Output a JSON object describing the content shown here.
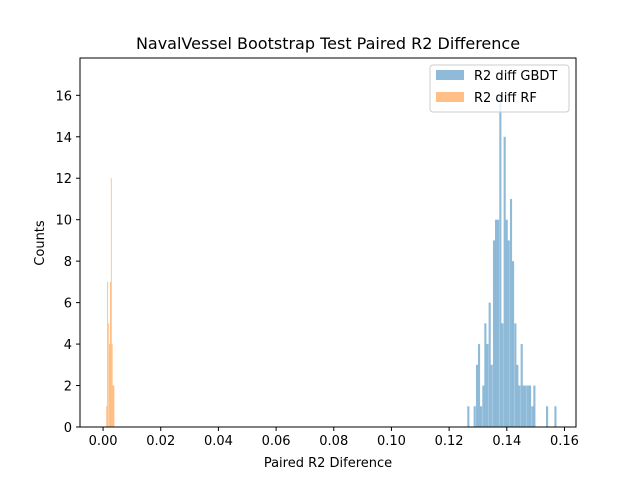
{
  "chart_data": {
    "type": "histogram",
    "title": "NavalVessel Bootstrap Test Paired R2 Difference",
    "xlabel": "Paired R2 Diference",
    "ylabel": "Counts",
    "xlim": [
      -0.008,
      0.164
    ],
    "ylim": [
      0,
      17.8
    ],
    "xticks": [
      0.0,
      0.02,
      0.04,
      0.06,
      0.08,
      0.1,
      0.12,
      0.14,
      0.16
    ],
    "xtick_labels": [
      "0.00",
      "0.02",
      "0.04",
      "0.06",
      "0.08",
      "0.10",
      "0.12",
      "0.14",
      "0.16"
    ],
    "yticks": [
      0,
      2,
      4,
      6,
      8,
      10,
      12,
      14,
      16
    ],
    "ytick_labels": [
      "0",
      "2",
      "4",
      "6",
      "8",
      "10",
      "12",
      "14",
      "16"
    ],
    "legend_location": "upper right",
    "grid": false,
    "series": [
      {
        "name": "R2 diff GBDT",
        "color": "#1f77b4",
        "alpha": 0.5,
        "bin_width": 0.00074,
        "bins": [
          [
            0.1263,
            1
          ],
          [
            0.1285,
            1
          ],
          [
            0.1293,
            3
          ],
          [
            0.13,
            4
          ],
          [
            0.1307,
            1
          ],
          [
            0.1315,
            2
          ],
          [
            0.1322,
            5
          ],
          [
            0.1329,
            4
          ],
          [
            0.1337,
            6
          ],
          [
            0.1344,
            3
          ],
          [
            0.1352,
            9
          ],
          [
            0.1359,
            10
          ],
          [
            0.1366,
            10
          ],
          [
            0.1374,
            16
          ],
          [
            0.1381,
            5
          ],
          [
            0.1389,
            14
          ],
          [
            0.1396,
            10
          ],
          [
            0.1403,
            9
          ],
          [
            0.1411,
            11
          ],
          [
            0.1418,
            8
          ],
          [
            0.1426,
            5
          ],
          [
            0.1433,
            3
          ],
          [
            0.144,
            2
          ],
          [
            0.1448,
            4
          ],
          [
            0.1455,
            2
          ],
          [
            0.1462,
            2
          ],
          [
            0.147,
            2
          ],
          [
            0.1477,
            2
          ],
          [
            0.1485,
            1
          ],
          [
            0.1492,
            2
          ],
          [
            0.1536,
            1
          ],
          [
            0.1565,
            1
          ]
        ]
      },
      {
        "name": "R2 diff RF",
        "color": "#ff7f0e",
        "alpha": 0.5,
        "bin_width": 0.00032,
        "bins": [
          [
            0.0011,
            1
          ],
          [
            0.0014,
            7
          ],
          [
            0.0018,
            5
          ],
          [
            0.0021,
            4
          ],
          [
            0.0024,
            7
          ],
          [
            0.0027,
            12
          ],
          [
            0.003,
            4
          ],
          [
            0.0033,
            2
          ],
          [
            0.0036,
            2
          ]
        ]
      }
    ]
  }
}
